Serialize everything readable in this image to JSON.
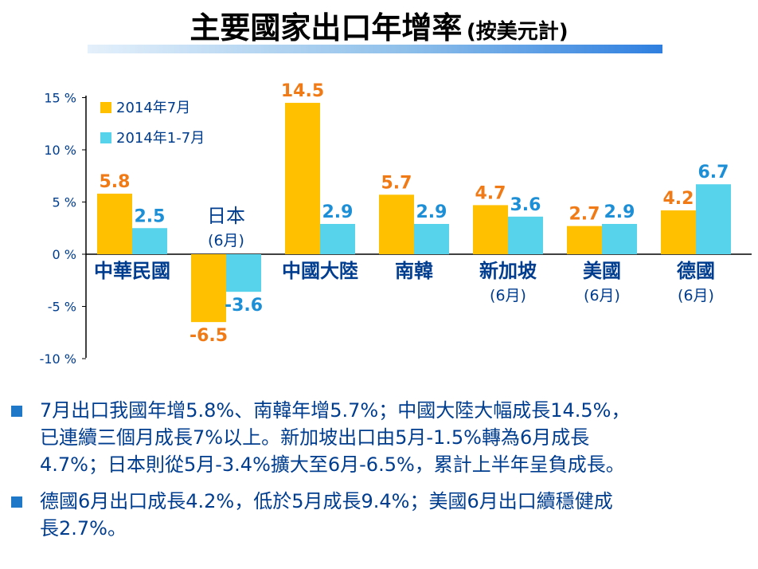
{
  "title": {
    "main": "主要國家出口年增率",
    "sub": "(按美元計)"
  },
  "colors": {
    "series_july": "#ffc000",
    "series_ytd": "#57d3ec",
    "orange_label": "#f07b16",
    "blue_label": "#1d8fd6",
    "text_blue": "#003d8f"
  },
  "chart_data": {
    "type": "bar",
    "categories": [
      "中華民國",
      "日本",
      "中國大陸",
      "南韓",
      "新加坡",
      "美國",
      "德國"
    ],
    "category_notes": [
      "",
      "(6月)",
      "",
      "",
      "(6月)",
      "(6月)",
      "(6月)"
    ],
    "series": [
      {
        "name": "2014年7月",
        "values": [
          5.8,
          -6.5,
          14.5,
          5.7,
          4.7,
          2.7,
          4.2
        ]
      },
      {
        "name": "2014年1-7月",
        "values": [
          2.5,
          -3.6,
          2.9,
          2.9,
          3.6,
          2.9,
          6.7
        ]
      }
    ],
    "value_labels": [
      [
        "5.8",
        "-6.5",
        "14.5",
        "5.7",
        "4.7",
        "2.7",
        "4.2"
      ],
      [
        "2.5",
        "-3.6",
        "2.9",
        "2.9",
        "3.6",
        "2.9",
        "6.7"
      ]
    ],
    "yticks": [
      15,
      10,
      5,
      0,
      -5,
      -10
    ],
    "ytick_labels": [
      "15 %",
      "10 %",
      "5 %",
      "0 %",
      "-5 %",
      "-10 %"
    ],
    "ylim": [
      -10,
      15
    ],
    "legend_position": "top-left",
    "grid": false
  },
  "bullets": [
    [
      "7月出口我國年增5.8%、南韓年增5.7%；中國大陸大幅成長14.5%，",
      "已連續三個月成長7%以上。新加坡出口由5月-1.5%轉為6月成長",
      "4.7%；日本則從5月-3.4%擴大至6月-6.5%，累計上半年呈負成長。"
    ],
    [
      "德國6月出口成長4.2%，低於5月成長9.4%；美國6月出口續穩健成",
      "長2.7%。"
    ]
  ]
}
